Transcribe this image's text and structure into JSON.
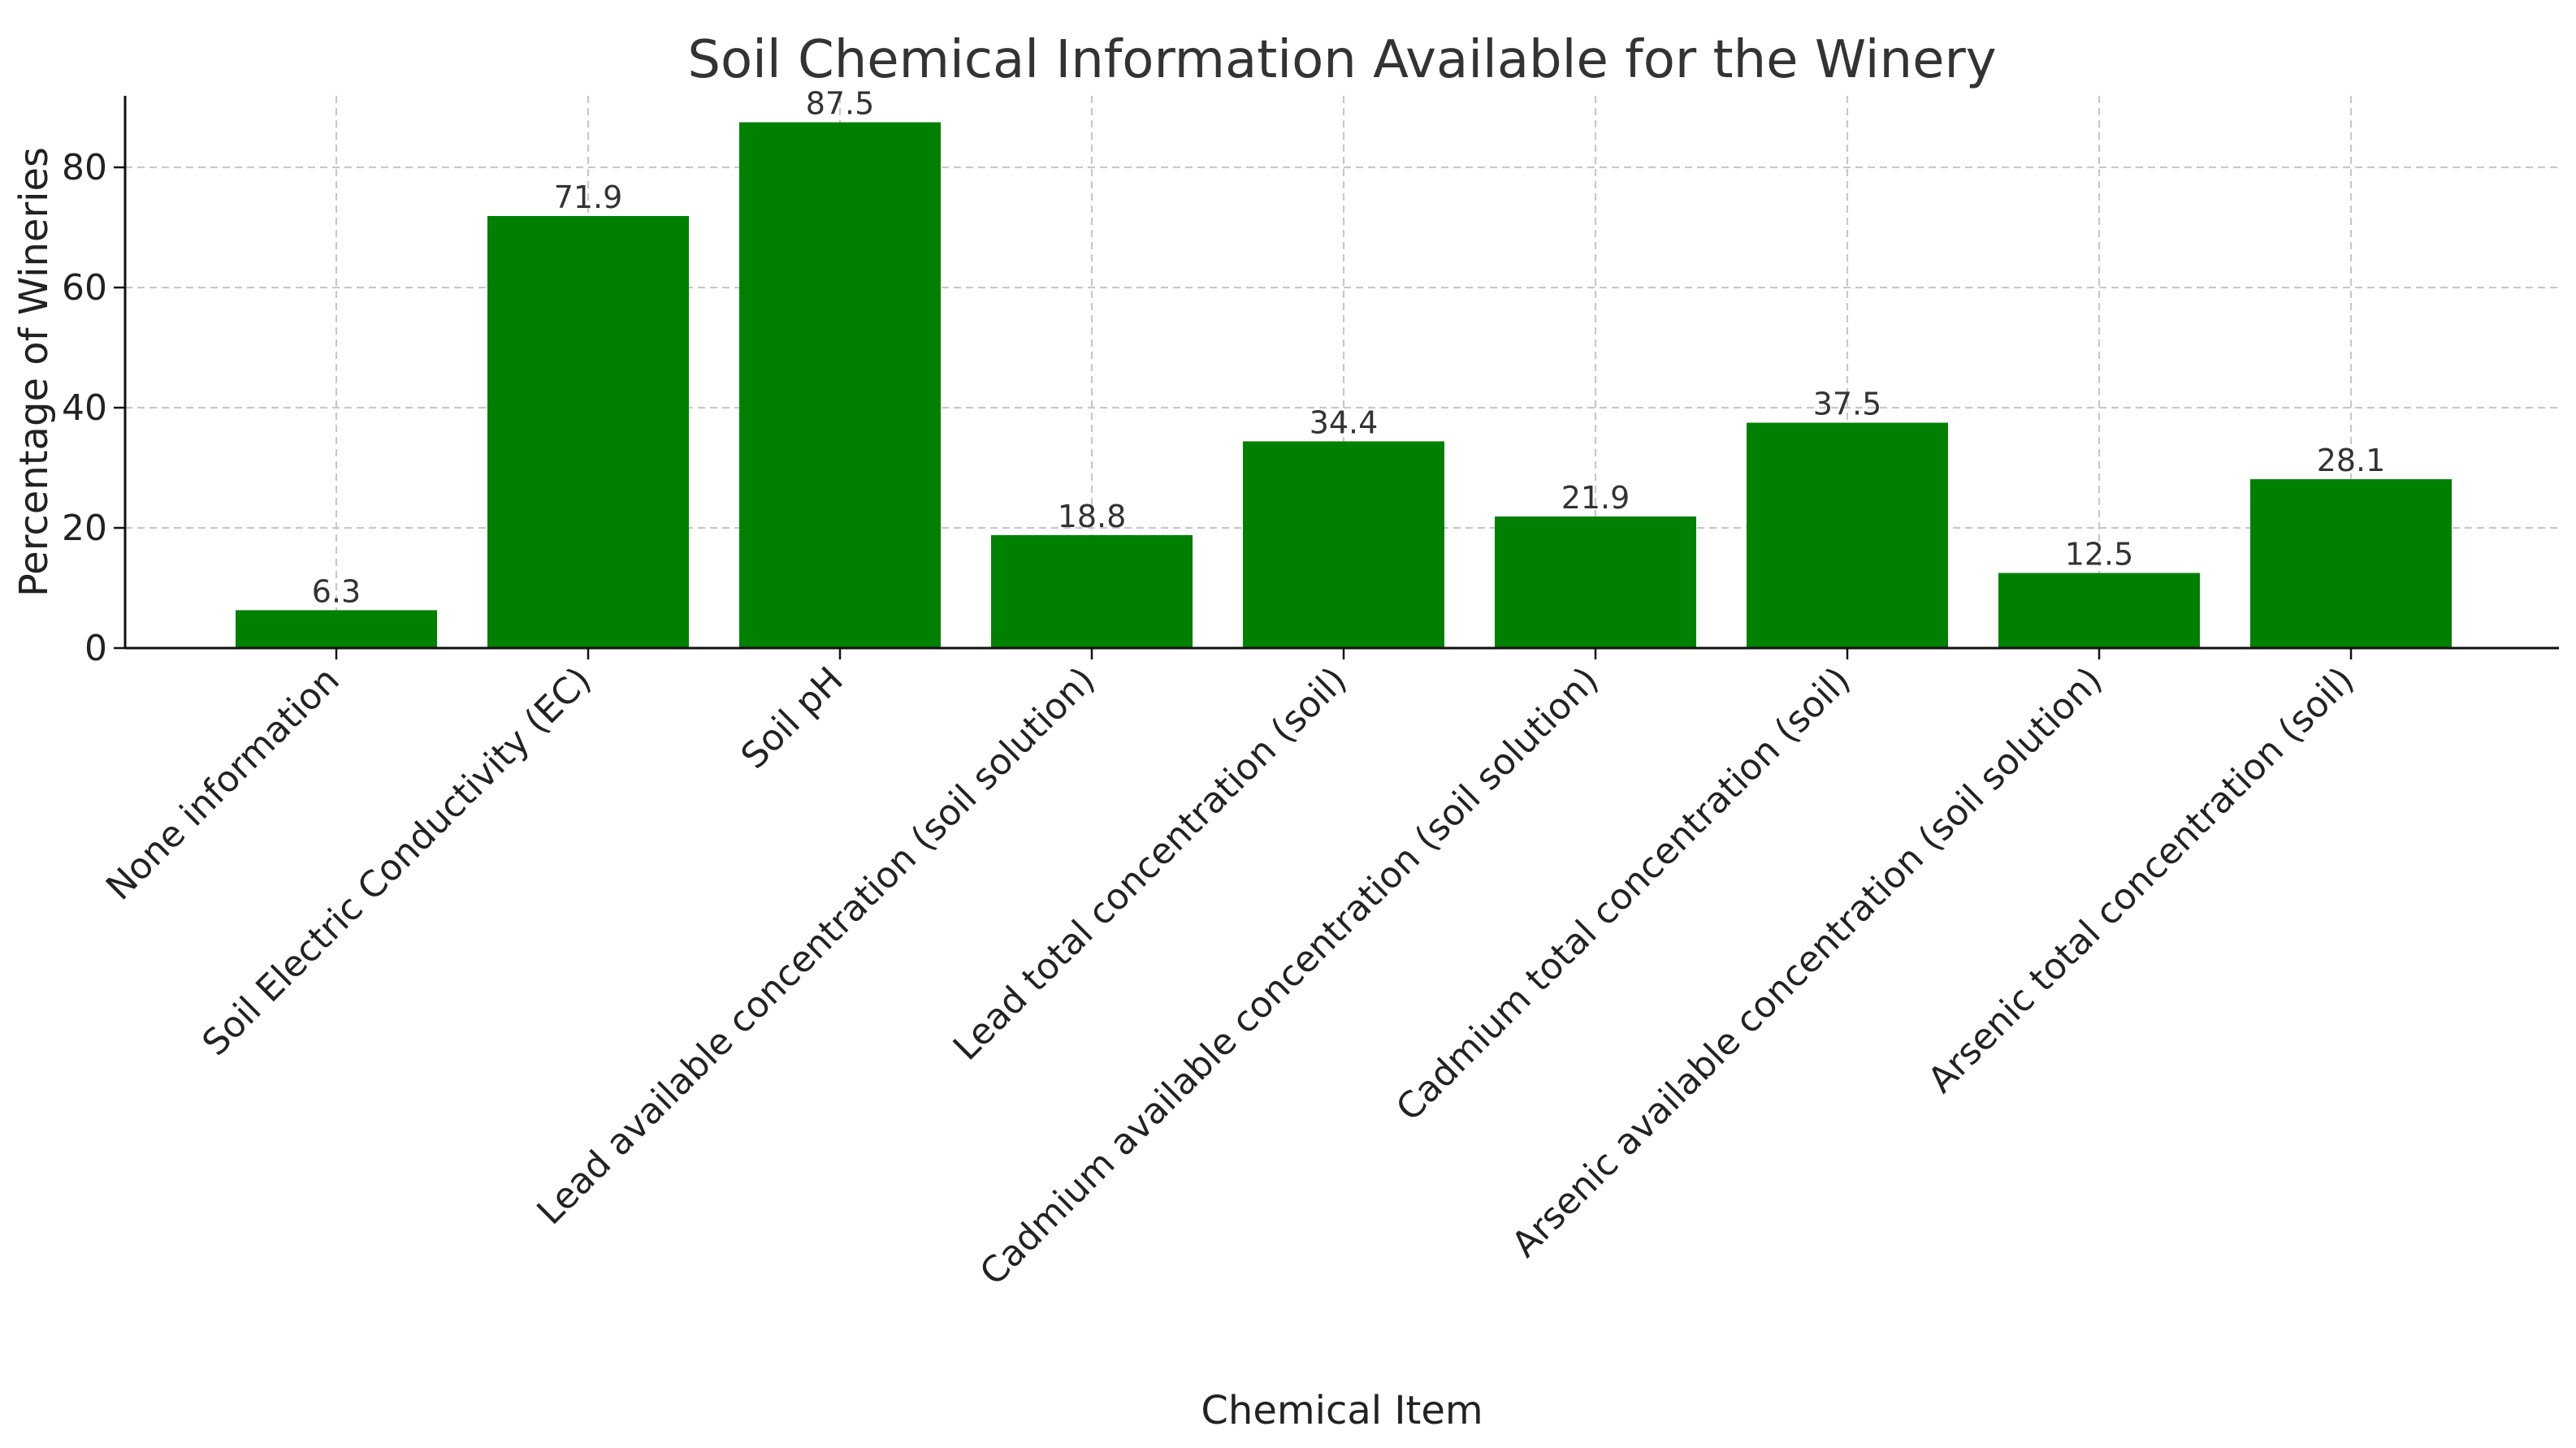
{
  "chart_data": {
    "type": "bar",
    "title": "Soil Chemical Information Available for the Winery",
    "xlabel": "Chemical Item",
    "ylabel": "Percentage of Wineries",
    "categories": [
      "None information",
      "Soil Electric Conductivity (EC)",
      "Soil pH",
      "Lead available concentration (soil solution)",
      "Lead total concentration (soil)",
      "Cadmium available concentration (soil solution)",
      "Cadmium total concentration (soil)",
      "Arsenic available concentration (soil solution)",
      "Arsenic total concentration (soil)"
    ],
    "values": [
      6.3,
      71.9,
      87.5,
      18.8,
      34.4,
      21.9,
      37.5,
      12.5,
      28.1
    ],
    "data_labels": [
      "6.3",
      "71.9",
      "87.5",
      "18.8",
      "34.4",
      "21.9",
      "37.5",
      "12.5",
      "28.1"
    ],
    "yticks": [
      0,
      20,
      40,
      60,
      80
    ],
    "ylim": [
      0,
      91.9
    ],
    "grid": true,
    "bar_color": "#008000"
  }
}
